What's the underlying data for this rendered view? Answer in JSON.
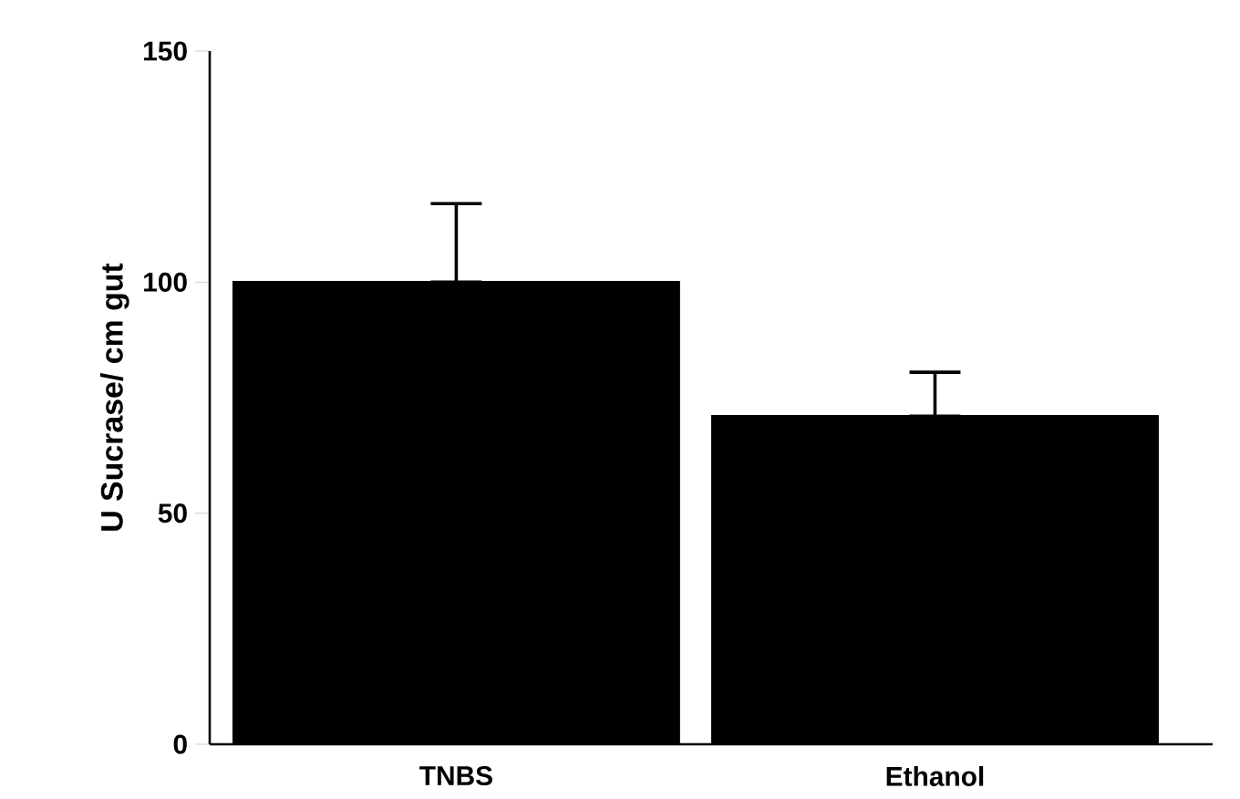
{
  "chart_data": {
    "type": "bar",
    "ylabel": "U Sucrase/ cm gut",
    "categories": [
      "TNBS",
      "Ethanol"
    ],
    "values": [
      100,
      71
    ],
    "color": "#000000",
    "errors": [
      [
        100,
        117
      ],
      [
        71,
        80.5
      ]
    ],
    "ylim": [
      0,
      150
    ],
    "yticks": [
      0,
      50,
      100,
      150
    ],
    "grid": false
  }
}
